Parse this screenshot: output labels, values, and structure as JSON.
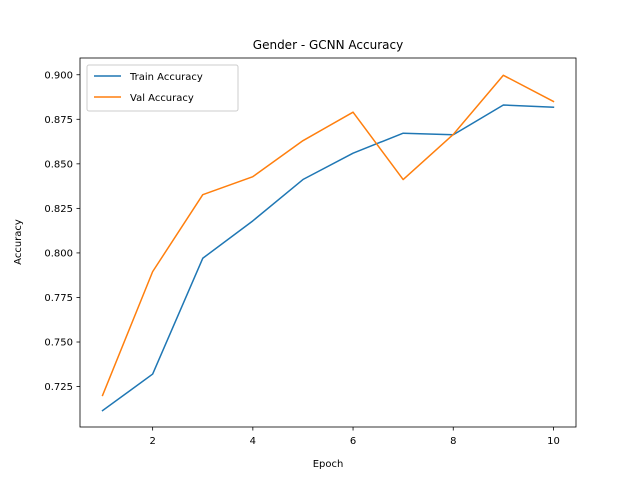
{
  "chart_data": {
    "type": "line",
    "title": "Gender - GCNN Accuracy",
    "xlabel": "Epoch",
    "ylabel": "Accuracy",
    "x": [
      1,
      2,
      3,
      4,
      5,
      6,
      7,
      8,
      9,
      10
    ],
    "xlim": [
      0.55,
      10.45
    ],
    "ylim": [
      0.7023,
      0.9094
    ],
    "xticks": [
      2,
      4,
      6,
      8,
      10
    ],
    "yticks": [
      0.725,
      0.75,
      0.775,
      0.8,
      0.825,
      0.85,
      0.875,
      0.9
    ],
    "xtick_labels": [
      "2",
      "4",
      "6",
      "8",
      "10"
    ],
    "ytick_labels": [
      "0.725",
      "0.750",
      "0.775",
      "0.800",
      "0.825",
      "0.850",
      "0.875",
      "0.900"
    ],
    "grid": false,
    "legend_position": "top-left",
    "series": [
      {
        "name": "Train Accuracy",
        "color": "#1f77b4",
        "values": [
          0.7115,
          0.732,
          0.797,
          0.818,
          0.8412,
          0.856,
          0.8672,
          0.8663,
          0.883,
          0.8818
        ]
      },
      {
        "name": "Val Accuracy",
        "color": "#ff7f0e",
        "values": [
          0.72,
          0.7895,
          0.8327,
          0.8428,
          0.863,
          0.879,
          0.8412,
          0.8665,
          0.8997,
          0.885
        ]
      }
    ]
  }
}
